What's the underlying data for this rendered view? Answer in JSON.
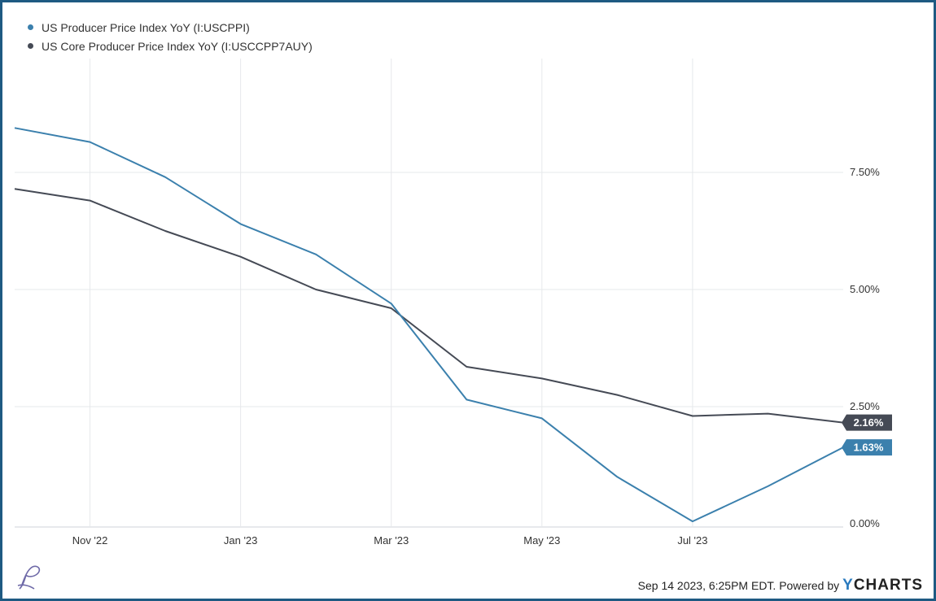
{
  "chart_data": {
    "type": "line",
    "x": [
      "2022-09-30",
      "2022-10-31",
      "2022-11-30",
      "2022-12-31",
      "2023-01-31",
      "2023-02-28",
      "2023-03-31",
      "2023-04-30",
      "2023-05-31",
      "2023-06-30",
      "2023-07-31",
      "2023-08-31"
    ],
    "x_tick_labels": [
      "Nov '22",
      "Jan '23",
      "Mar '23",
      "May '23",
      "Jul '23"
    ],
    "y_tick_labels": [
      "0.00%",
      "2.50%",
      "5.00%",
      "7.50%"
    ],
    "ylim": [
      0,
      10
    ],
    "grid": true,
    "series": [
      {
        "name": "US Producer Price Index YoY (I:USCPPI)",
        "color": "#3b80ad",
        "values": [
          8.45,
          8.15,
          7.4,
          6.4,
          5.75,
          4.7,
          2.65,
          2.25,
          1.0,
          0.05,
          0.8,
          1.63
        ],
        "last_label": "1.63%"
      },
      {
        "name": "US Core Producer Price Index YoY (I:USCCPP7AUY)",
        "color": "#454a55",
        "values": [
          7.15,
          6.9,
          6.25,
          5.7,
          5.0,
          4.6,
          3.35,
          3.1,
          2.75,
          2.3,
          2.35,
          2.16
        ],
        "last_label": "2.16%"
      }
    ]
  },
  "footer": {
    "timestamp": "Sep 14 2023, 6:25PM EDT.  Powered by",
    "brand_y": "Y",
    "brand_rest": "CHARTS"
  }
}
